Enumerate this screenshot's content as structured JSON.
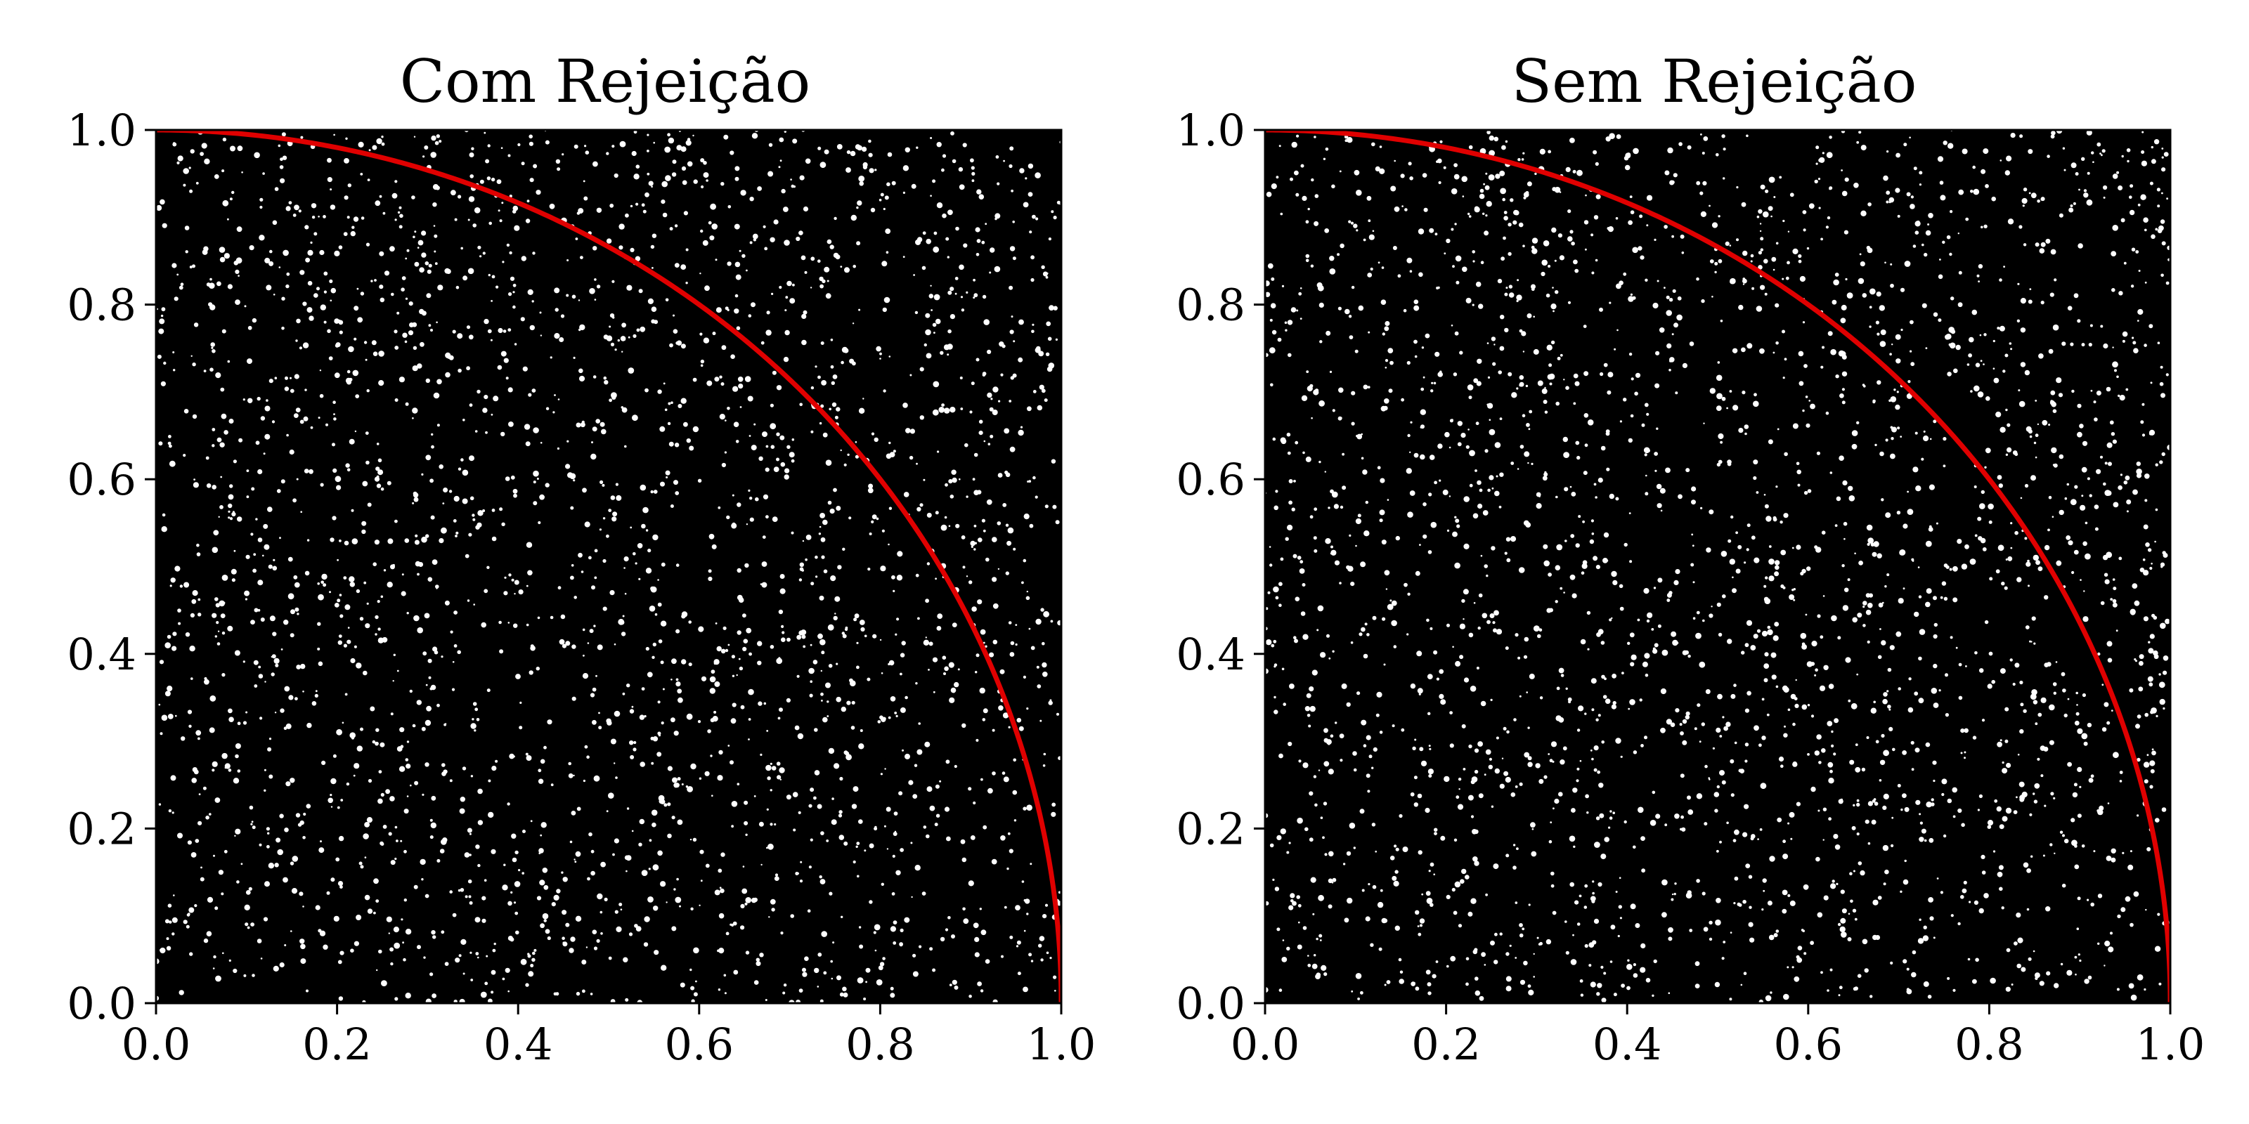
{
  "chart_data": [
    {
      "type": "scatter",
      "title": "Com Rejeição",
      "xlabel": "",
      "ylabel": "",
      "xlim": [
        0.0,
        1.0
      ],
      "ylim": [
        0.0,
        1.0
      ],
      "xticks": [
        "0.0",
        "0.2",
        "0.4",
        "0.6",
        "0.8",
        "1.0"
      ],
      "yticks": [
        "0.0",
        "0.2",
        "0.4",
        "0.6",
        "0.8",
        "1.0"
      ],
      "grid": false,
      "legend": "none",
      "series": [
        {
          "kind": "scatter",
          "description_visible": "dense uniform random points filling the unit square",
          "color": "#000000",
          "x_range": [
            0.0,
            1.0
          ],
          "y_range": [
            0.0,
            1.0
          ],
          "seed": 12345
        },
        {
          "kind": "curve",
          "function": "y = sqrt(1 - x^2)",
          "x_range": [
            0.0,
            1.0
          ],
          "color": "#e00000"
        }
      ]
    },
    {
      "type": "scatter",
      "title": "Sem Rejeição",
      "xlabel": "",
      "ylabel": "",
      "xlim": [
        0.0,
        1.0
      ],
      "ylim": [
        0.0,
        1.0
      ],
      "xticks": [
        "0.0",
        "0.2",
        "0.4",
        "0.6",
        "0.8",
        "1.0"
      ],
      "yticks": [
        "0.0",
        "0.2",
        "0.4",
        "0.6",
        "0.8",
        "1.0"
      ],
      "grid": false,
      "legend": "none",
      "series": [
        {
          "kind": "scatter",
          "description_visible": "dense uniform random points filling the unit square",
          "color": "#000000",
          "x_range": [
            0.0,
            1.0
          ],
          "y_range": [
            0.0,
            1.0
          ],
          "seed": 67890
        },
        {
          "kind": "curve",
          "function": "y = sqrt(1 - x^2)",
          "x_range": [
            0.0,
            1.0
          ],
          "color": "#e00000"
        }
      ]
    }
  ]
}
